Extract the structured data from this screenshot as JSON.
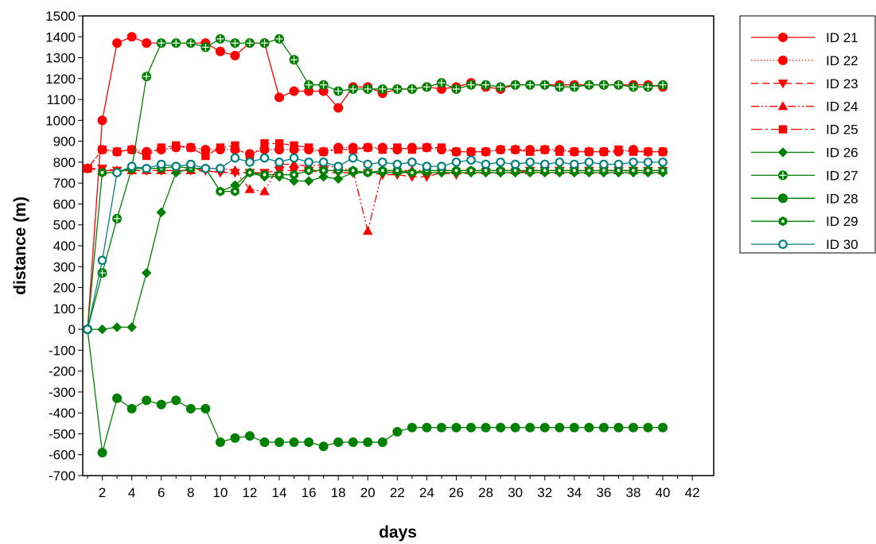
{
  "chart_data": {
    "type": "line",
    "title": "",
    "xlabel": "days",
    "ylabel": "distance (m)",
    "xlim": [
      1,
      42
    ],
    "ylim": [
      -700,
      1500
    ],
    "x_ticks": [
      2,
      4,
      6,
      8,
      10,
      12,
      14,
      16,
      18,
      20,
      22,
      24,
      26,
      28,
      30,
      32,
      34,
      36,
      38,
      40,
      42
    ],
    "y_ticks": [
      -700,
      -600,
      -500,
      -400,
      -300,
      -200,
      -100,
      0,
      100,
      200,
      300,
      400,
      500,
      600,
      700,
      800,
      900,
      1000,
      1100,
      1200,
      1300,
      1400,
      1500
    ],
    "grid": false,
    "legend_position": "right",
    "series": [
      {
        "name": "ID 21",
        "color": "#ff0000",
        "line_style": "solid",
        "marker": "circle",
        "filled": true,
        "x": [
          1,
          2,
          3,
          4,
          5,
          9,
          10,
          11,
          12,
          13,
          14,
          15,
          16,
          17,
          18,
          19,
          20,
          21,
          22,
          23,
          24,
          25,
          26,
          27,
          28,
          29,
          30,
          31,
          32,
          33,
          34,
          35,
          36,
          37,
          38,
          39,
          40
        ],
        "values": [
          0,
          1000,
          1370,
          1400,
          1370,
          1370,
          1330,
          1310,
          1370,
          1370,
          1110,
          1140,
          1140,
          1140,
          1060,
          1160,
          1160,
          1130,
          1150,
          1150,
          1160,
          1150,
          1160,
          1180,
          1160,
          1150,
          1170,
          1170,
          1170,
          1170,
          1170,
          1170,
          1170,
          1170,
          1170,
          1170,
          1160
        ]
      },
      {
        "name": "ID 22",
        "color": "#ff0000",
        "line_style": "dotted",
        "marker": "circle",
        "filled": true,
        "x": [
          1,
          2,
          3,
          4,
          5,
          6,
          7,
          8,
          9,
          10,
          11,
          12,
          13,
          14,
          15,
          16,
          17,
          18,
          19,
          20,
          21,
          22,
          23,
          24,
          25,
          26,
          27,
          28,
          29,
          30,
          31,
          32,
          33,
          34,
          35,
          36,
          37,
          38,
          39,
          40
        ],
        "values": [
          770,
          860,
          850,
          860,
          850,
          860,
          870,
          870,
          860,
          860,
          860,
          840,
          860,
          860,
          860,
          860,
          850,
          870,
          870,
          870,
          870,
          860,
          870,
          870,
          860,
          850,
          850,
          850,
          860,
          860,
          860,
          860,
          860,
          850,
          850,
          850,
          850,
          860,
          850,
          850
        ]
      },
      {
        "name": "ID 23",
        "color": "#ff0000",
        "line_style": "dashed",
        "marker": "triangle-down",
        "filled": true,
        "x": [
          1,
          2,
          3,
          4,
          5,
          6,
          7,
          8,
          9,
          10,
          11,
          12,
          13,
          14,
          15,
          16,
          17,
          18,
          19,
          20,
          21,
          22,
          23,
          24,
          25,
          26,
          27,
          28,
          29,
          30,
          31,
          32,
          33,
          34,
          35,
          36,
          37,
          38,
          39,
          40
        ],
        "values": [
          770,
          770,
          760,
          760,
          760,
          760,
          760,
          760,
          760,
          750,
          750,
          750,
          750,
          760,
          760,
          760,
          750,
          750,
          750,
          750,
          740,
          740,
          730,
          730,
          750,
          740,
          750,
          750,
          750,
          750,
          760,
          760,
          760,
          760,
          760,
          760,
          760,
          760,
          760,
          760
        ]
      },
      {
        "name": "ID 24",
        "color": "#ff0000",
        "line_style": "dash-dot-dot",
        "marker": "triangle-up",
        "filled": true,
        "x": [
          1,
          2,
          3,
          4,
          5,
          6,
          7,
          8,
          9,
          10,
          11,
          12,
          13,
          14,
          15,
          16,
          17,
          18,
          19,
          20,
          21,
          22,
          23,
          24,
          25,
          26,
          27,
          28,
          29,
          30,
          31,
          32,
          33,
          34,
          35,
          36,
          37,
          38,
          39,
          40
        ],
        "values": [
          770,
          760,
          760,
          760,
          760,
          760,
          760,
          760,
          770,
          770,
          760,
          670,
          660,
          790,
          790,
          780,
          790,
          770,
          760,
          470,
          760,
          760,
          760,
          760,
          760,
          760,
          760,
          760,
          760,
          760,
          760,
          760,
          760,
          760,
          760,
          760,
          760,
          760,
          760,
          760
        ]
      },
      {
        "name": "ID 25",
        "color": "#ff0000",
        "line_style": "long-dash-dot",
        "marker": "square",
        "filled": true,
        "x": [
          1,
          2,
          3,
          4,
          5,
          6,
          7,
          8,
          9,
          10,
          11,
          12,
          13,
          14,
          15,
          16,
          17,
          18,
          19,
          20,
          21,
          22,
          23,
          24,
          25,
          26,
          27,
          28,
          29,
          30,
          31,
          32,
          33,
          34,
          35,
          36,
          37,
          38,
          39,
          40
        ],
        "values": [
          770,
          860,
          850,
          860,
          830,
          870,
          880,
          870,
          830,
          870,
          880,
          820,
          890,
          890,
          880,
          870,
          850,
          860,
          860,
          870,
          860,
          870,
          860,
          870,
          870,
          850,
          850,
          850,
          860,
          860,
          850,
          860,
          850,
          850,
          850,
          850,
          860,
          850,
          850,
          850
        ]
      },
      {
        "name": "ID 26",
        "color": "#008000",
        "line_style": "solid",
        "marker": "diamond",
        "filled": true,
        "x": [
          1,
          2,
          3,
          4,
          5,
          6,
          7,
          8,
          9,
          10,
          11,
          12,
          13,
          14,
          15,
          16,
          17,
          18,
          19,
          20,
          21,
          22,
          23,
          24,
          25,
          26,
          27,
          28,
          29,
          30,
          31,
          32,
          33,
          34,
          35,
          36,
          37,
          38,
          39,
          40
        ],
        "values": [
          0,
          0,
          10,
          10,
          270,
          560,
          750,
          770,
          770,
          660,
          690,
          750,
          730,
          730,
          710,
          710,
          730,
          720,
          750,
          750,
          750,
          750,
          750,
          750,
          750,
          750,
          750,
          750,
          750,
          750,
          750,
          750,
          750,
          750,
          750,
          750,
          750,
          750,
          750,
          750
        ]
      },
      {
        "name": "ID 27",
        "color": "#008000",
        "line_style": "solid",
        "marker": "circle-cross",
        "filled": true,
        "x": [
          1,
          2,
          3,
          4,
          5,
          6,
          7,
          8,
          9,
          10,
          11,
          12,
          13,
          14,
          15,
          16,
          17,
          18,
          19,
          20,
          21,
          22,
          23,
          24,
          25,
          26,
          27,
          28,
          29,
          30,
          31,
          32,
          33,
          34,
          35,
          36,
          37,
          38,
          39,
          40
        ],
        "values": [
          0,
          270,
          530,
          770,
          1210,
          1370,
          1370,
          1370,
          1350,
          1390,
          1370,
          1370,
          1370,
          1390,
          1290,
          1170,
          1170,
          1140,
          1150,
          1150,
          1150,
          1150,
          1150,
          1160,
          1180,
          1150,
          1170,
          1170,
          1160,
          1170,
          1170,
          1170,
          1160,
          1160,
          1170,
          1170,
          1170,
          1160,
          1160,
          1170
        ]
      },
      {
        "name": "ID 28",
        "color": "#008000",
        "line_style": "solid",
        "marker": "circle",
        "filled": true,
        "x": [
          1,
          2,
          3,
          4,
          5,
          6,
          7,
          8,
          9,
          10,
          11,
          12,
          13,
          14,
          15,
          16,
          17,
          18,
          19,
          20,
          21,
          22,
          23,
          24,
          25,
          26,
          27,
          28,
          29,
          30,
          31,
          32,
          33,
          34,
          35,
          36,
          37,
          38,
          39,
          40
        ],
        "values": [
          0,
          -590,
          -330,
          -380,
          -340,
          -360,
          -340,
          -380,
          -380,
          -540,
          -520,
          -510,
          -540,
          -540,
          -540,
          -540,
          -560,
          -540,
          -540,
          -540,
          -540,
          -490,
          -470,
          -470,
          -470,
          -470,
          -470,
          -470,
          -470,
          -470,
          -470,
          -470,
          -470,
          -470,
          -470,
          -470,
          -470,
          -470,
          -470,
          -470
        ]
      },
      {
        "name": "ID 29",
        "color": "#008000",
        "line_style": "solid",
        "marker": "hexagon",
        "filled": true,
        "x": [
          1,
          2,
          3,
          4,
          5,
          6,
          7,
          8,
          9,
          10,
          11,
          12,
          13,
          14,
          15,
          16,
          17,
          18,
          19,
          20,
          21,
          22,
          23,
          24,
          25,
          26,
          27,
          28,
          29,
          30,
          31,
          32,
          33,
          34,
          35,
          36,
          37,
          38,
          39,
          40
        ],
        "values": [
          0,
          750,
          750,
          770,
          770,
          770,
          780,
          770,
          770,
          660,
          660,
          750,
          740,
          740,
          740,
          760,
          760,
          760,
          760,
          750,
          760,
          760,
          750,
          760,
          760,
          760,
          760,
          760,
          760,
          760,
          760,
          760,
          760,
          760,
          760,
          760,
          760,
          760,
          760,
          760
        ]
      },
      {
        "name": "ID 30",
        "color": "#00807f",
        "line_style": "solid",
        "marker": "circle",
        "filled": false,
        "x": [
          1,
          2,
          3,
          4,
          5,
          6,
          7,
          8,
          9,
          10,
          11,
          12,
          13,
          14,
          15,
          16,
          17,
          18,
          19,
          20,
          21,
          22,
          23,
          24,
          25,
          26,
          27,
          28,
          29,
          30,
          31,
          32,
          33,
          34,
          35,
          36,
          37,
          38,
          39,
          40
        ],
        "values": [
          0,
          330,
          750,
          780,
          770,
          790,
          780,
          790,
          770,
          770,
          820,
          800,
          820,
          800,
          820,
          800,
          800,
          780,
          820,
          790,
          800,
          790,
          800,
          780,
          780,
          800,
          810,
          790,
          800,
          790,
          800,
          790,
          800,
          790,
          800,
          790,
          790,
          800,
          800,
          800
        ]
      }
    ]
  }
}
